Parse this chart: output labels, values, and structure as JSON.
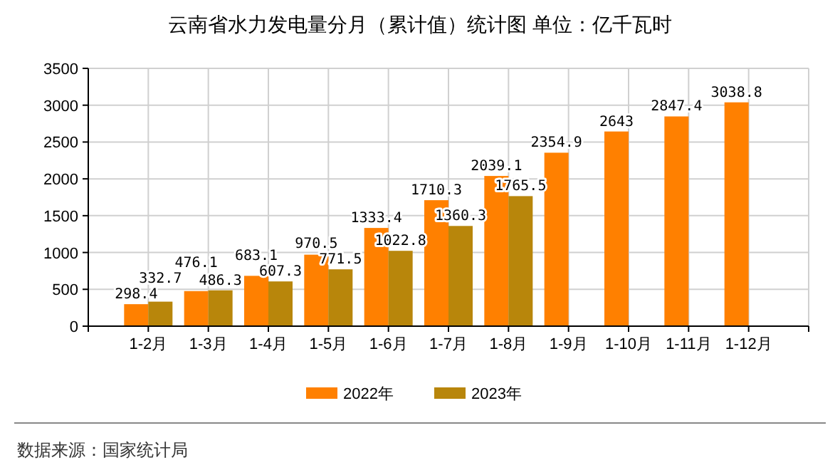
{
  "chart_data": {
    "type": "bar",
    "title": "云南省水力发电量分月（累计值）统计图 单位：亿千瓦时",
    "categories": [
      "1-2月",
      "1-3月",
      "1-4月",
      "1-5月",
      "1-6月",
      "1-7月",
      "1-8月",
      "1-9月",
      "1-10月",
      "1-11月",
      "1-12月"
    ],
    "series": [
      {
        "name": "2022年",
        "color": "#ff8000",
        "values": [
          298.4,
          476.1,
          683.1,
          970.5,
          1333.4,
          1710.3,
          2039.1,
          2354.9,
          2643,
          2847.4,
          3038.8
        ]
      },
      {
        "name": "2023年",
        "color": "#b8860b",
        "values": [
          332.7,
          486.3,
          607.3,
          771.5,
          1022.8,
          1360.3,
          1765.5,
          null,
          null,
          null,
          null
        ]
      }
    ],
    "ylim": [
      0,
      3500
    ],
    "yticks": [
      0,
      500,
      1000,
      1500,
      2000,
      2500,
      3000,
      3500
    ],
    "grid": true,
    "legend": "bottom",
    "data_labels": true,
    "annotations": [
      "数据来源：国家统计局"
    ]
  }
}
